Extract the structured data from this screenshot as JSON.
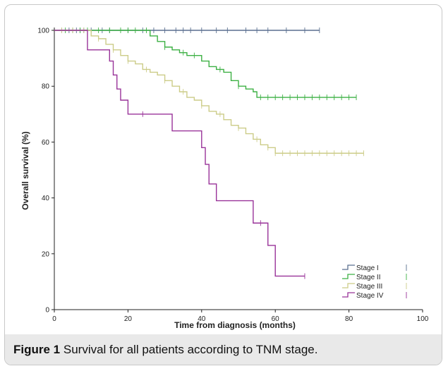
{
  "caption": {
    "label": "Figure 1",
    "text": "Survival for all patients according to TNM stage."
  },
  "chart_data": {
    "type": "line",
    "step": true,
    "xlabel": "Time from diagnosis (months)",
    "ylabel": "Overall survival (%)",
    "xlim": [
      0,
      100
    ],
    "ylim": [
      0,
      100
    ],
    "xticks": [
      0,
      20,
      40,
      60,
      80,
      100
    ],
    "yticks": [
      0,
      20,
      40,
      60,
      80,
      100
    ],
    "xtick_labels": [
      "0",
      "20",
      "40",
      "60",
      "80",
      "100"
    ],
    "ytick_labels": [
      "0",
      "20",
      "40",
      "60",
      "80",
      "100"
    ],
    "grid": false,
    "legend_position": "bottom-right",
    "series": [
      {
        "name": "Stage I",
        "color": "#5a6f8f",
        "x": [
          0,
          72
        ],
        "y": [
          100,
          100
        ],
        "censored": [
          2,
          4,
          5,
          6,
          7,
          8,
          10,
          13,
          15,
          20,
          24,
          27,
          30,
          33,
          35,
          37,
          40,
          44,
          47,
          52,
          55,
          58,
          63,
          68,
          72
        ]
      },
      {
        "name": "Stage II",
        "color": "#3cb043",
        "x": [
          0,
          26,
          28,
          30,
          32,
          34,
          36,
          40,
          42,
          44,
          46,
          48,
          50,
          52,
          54,
          55,
          82
        ],
        "y": [
          100,
          98,
          96,
          94,
          93,
          92,
          91,
          89,
          87,
          86,
          85,
          82,
          80,
          79,
          78,
          76,
          76
        ],
        "censored": [
          3,
          5,
          7,
          9,
          12,
          15,
          18,
          20,
          22,
          25,
          30,
          35,
          38,
          45,
          50,
          56,
          58,
          60,
          62,
          64,
          66,
          68,
          70,
          72,
          74,
          76,
          78,
          80,
          82
        ]
      },
      {
        "name": "Stage III",
        "color": "#cccc88",
        "x": [
          0,
          10,
          12,
          14,
          16,
          18,
          20,
          22,
          24,
          26,
          28,
          30,
          32,
          34,
          36,
          38,
          40,
          42,
          44,
          46,
          48,
          50,
          52,
          54,
          56,
          58,
          60,
          84
        ],
        "y": [
          100,
          98,
          97,
          95,
          93,
          91,
          89,
          88,
          86,
          85,
          84,
          82,
          80,
          78,
          76,
          75,
          73,
          71,
          70,
          68,
          66,
          65,
          63,
          61,
          59,
          58,
          56,
          56
        ],
        "censored": [
          2,
          5,
          8,
          12,
          16,
          20,
          25,
          30,
          35,
          40,
          45,
          50,
          55,
          58,
          60,
          62,
          64,
          66,
          68,
          70,
          72,
          74,
          76,
          78,
          80,
          82,
          84
        ]
      },
      {
        "name": "Stage IV",
        "color": "#993399",
        "x": [
          0,
          9,
          10,
          15,
          16,
          17,
          18,
          20,
          30,
          32,
          40,
          41,
          42,
          44,
          53,
          54,
          58,
          60,
          68
        ],
        "y": [
          100,
          93,
          93,
          89,
          84,
          79,
          75,
          70,
          70,
          64,
          58,
          52,
          45,
          39,
          39,
          31,
          23,
          12,
          12
        ],
        "censored": [
          24,
          56,
          68
        ]
      }
    ]
  }
}
